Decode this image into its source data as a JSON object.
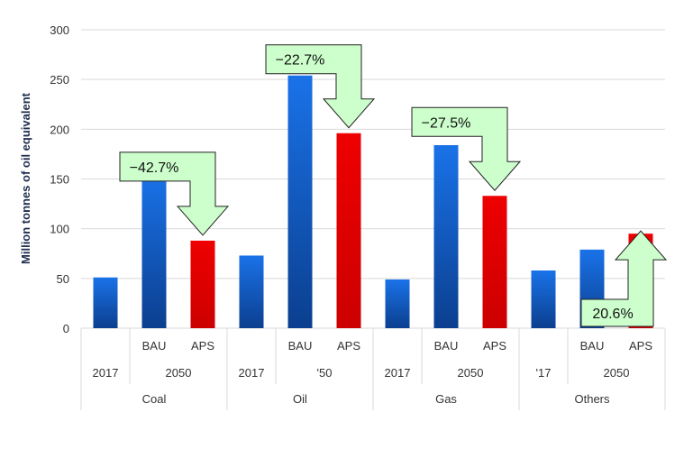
{
  "chart_data": {
    "type": "bar",
    "title": "",
    "ylabel": "Million tonnes of oil equivalent",
    "ylim": [
      0,
      300
    ],
    "yticks": [
      0,
      50,
      100,
      150,
      200,
      250,
      300
    ],
    "grid": true,
    "groups": [
      {
        "name": "Coal",
        "bars": [
          {
            "label": "",
            "year": "2017",
            "value": 51,
            "color": "#1565d8"
          },
          {
            "label": "BAU",
            "year": "2050",
            "value": 155,
            "color": "#1565d8"
          },
          {
            "label": "APS",
            "year": "2050",
            "value": 88,
            "color": "#e00000"
          }
        ],
        "year_labels": [
          "2017",
          "2050"
        ],
        "annotation": {
          "text": "−42.7%",
          "direction": "down"
        }
      },
      {
        "name": "Oil",
        "bars": [
          {
            "label": "",
            "year": "2017",
            "value": 73,
            "color": "#1565d8"
          },
          {
            "label": "BAU",
            "year": "'50",
            "value": 254,
            "color": "#1565d8"
          },
          {
            "label": "APS",
            "year": "'50",
            "value": 196,
            "color": "#e00000"
          }
        ],
        "year_labels": [
          "2017",
          "'50"
        ],
        "annotation": {
          "text": "−22.7%",
          "direction": "down"
        }
      },
      {
        "name": "Gas",
        "bars": [
          {
            "label": "",
            "year": "2017",
            "value": 49,
            "color": "#1565d8"
          },
          {
            "label": "BAU",
            "year": "2050",
            "value": 184,
            "color": "#1565d8"
          },
          {
            "label": "APS",
            "year": "2050",
            "value": 133,
            "color": "#e00000"
          }
        ],
        "year_labels": [
          "2017",
          "2050"
        ],
        "annotation": {
          "text": "−27.5%",
          "direction": "down"
        }
      },
      {
        "name": "Others",
        "bars": [
          {
            "label": "",
            "year": "'17",
            "value": 58,
            "color": "#1565d8"
          },
          {
            "label": "BAU",
            "year": "2050",
            "value": 79,
            "color": "#1565d8"
          },
          {
            "label": "APS",
            "year": "2050",
            "value": 95,
            "color": "#e00000"
          }
        ],
        "year_labels": [
          "'17",
          "2050"
        ],
        "annotation": {
          "text": "20.6%",
          "direction": "up"
        }
      }
    ],
    "annotation_fill": "#ccffcc",
    "annotation_stroke": "#222222"
  }
}
